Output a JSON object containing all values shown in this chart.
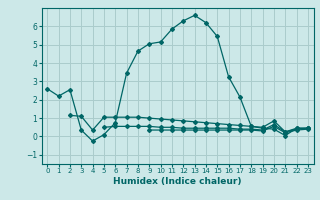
{
  "title": "",
  "xlabel": "Humidex (Indice chaleur)",
  "ylabel": "",
  "bg_color": "#cce8e8",
  "grid_color": "#aacccc",
  "line_color": "#006666",
  "xlim": [
    -0.5,
    23.5
  ],
  "ylim": [
    -1.5,
    7.0
  ],
  "yticks": [
    -1,
    0,
    1,
    2,
    3,
    4,
    5,
    6
  ],
  "xticks": [
    0,
    1,
    2,
    3,
    4,
    5,
    6,
    7,
    8,
    9,
    10,
    11,
    12,
    13,
    14,
    15,
    16,
    17,
    18,
    19,
    20,
    21,
    22,
    23
  ],
  "line1_x": [
    0,
    1,
    2,
    3,
    4,
    5,
    6,
    7,
    8,
    9,
    10,
    11,
    12,
    13,
    14,
    15,
    16,
    17,
    18,
    19,
    20,
    21,
    22,
    23
  ],
  "line1_y": [
    2.6,
    2.2,
    2.55,
    0.35,
    -0.25,
    0.1,
    0.75,
    3.45,
    4.65,
    5.05,
    5.15,
    5.85,
    6.3,
    6.6,
    6.2,
    5.45,
    3.25,
    2.15,
    0.55,
    0.45,
    0.4,
    0.05,
    0.45,
    0.45
  ],
  "line2_x": [
    2,
    3,
    4,
    5,
    6,
    7,
    8,
    9,
    10,
    11,
    12,
    13,
    14,
    15,
    16,
    17,
    18,
    19,
    20,
    21,
    22,
    23
  ],
  "line2_y": [
    1.15,
    1.1,
    0.35,
    1.05,
    1.05,
    1.05,
    1.05,
    1.0,
    0.95,
    0.9,
    0.85,
    0.8,
    0.75,
    0.7,
    0.65,
    0.6,
    0.55,
    0.5,
    0.85,
    0.25,
    0.45,
    0.45
  ],
  "line3_x": [
    5,
    6,
    7,
    8,
    9,
    10,
    11,
    12,
    13,
    14,
    15,
    16,
    17,
    18,
    19,
    20,
    21,
    22,
    23
  ],
  "line3_y": [
    0.5,
    0.55,
    0.55,
    0.55,
    0.55,
    0.5,
    0.5,
    0.45,
    0.45,
    0.45,
    0.45,
    0.45,
    0.4,
    0.4,
    0.35,
    0.65,
    0.25,
    0.4,
    0.45
  ],
  "line4_x": [
    9,
    10,
    11,
    12,
    13,
    14,
    15,
    16,
    17,
    18,
    19,
    20,
    21,
    22,
    23
  ],
  "line4_y": [
    0.35,
    0.35,
    0.35,
    0.35,
    0.35,
    0.35,
    0.35,
    0.35,
    0.35,
    0.35,
    0.3,
    0.55,
    0.2,
    0.35,
    0.4
  ]
}
